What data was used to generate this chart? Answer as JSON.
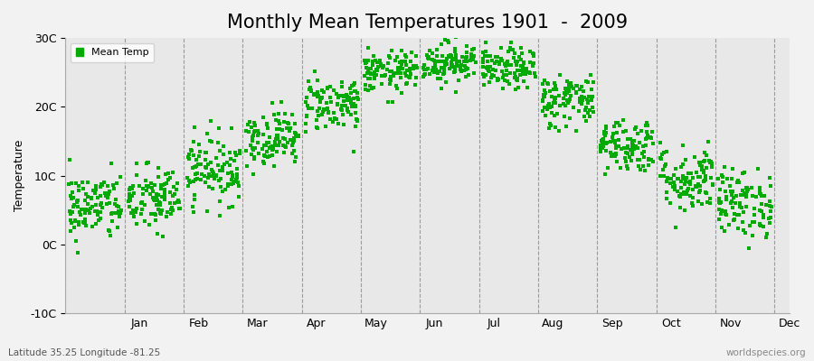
{
  "title": "Monthly Mean Temperatures 1901  -  2009",
  "ylabel": "Temperature",
  "y_label_bottom_text": "Latitude 35.25 Longitude -81.25",
  "y_label_right_text": "worldspecies.org",
  "ylim": [
    -10,
    30
  ],
  "yticks": [
    -10,
    0,
    10,
    20,
    30
  ],
  "ytick_labels": [
    "-10C",
    "0C",
    "10C",
    "20C",
    "30C"
  ],
  "months": [
    "Jan",
    "Feb",
    "Mar",
    "Apr",
    "May",
    "Jun",
    "Jul",
    "Aug",
    "Sep",
    "Oct",
    "Nov",
    "Dec"
  ],
  "dot_color": "#00aa00",
  "plot_bg_color": "#e8e8e8",
  "fig_bg_color": "#f2f2f2",
  "legend_label": "Mean Temp",
  "title_fontsize": 15,
  "monthly_means": [
    5.5,
    6.5,
    11.0,
    15.5,
    20.5,
    25.0,
    26.5,
    25.5,
    21.0,
    14.5,
    9.5,
    6.0
  ],
  "monthly_stds": [
    2.5,
    2.5,
    2.5,
    2.0,
    2.0,
    1.5,
    1.5,
    1.5,
    2.0,
    2.0,
    2.5,
    2.5
  ],
  "n_years": 109,
  "seed": 42
}
